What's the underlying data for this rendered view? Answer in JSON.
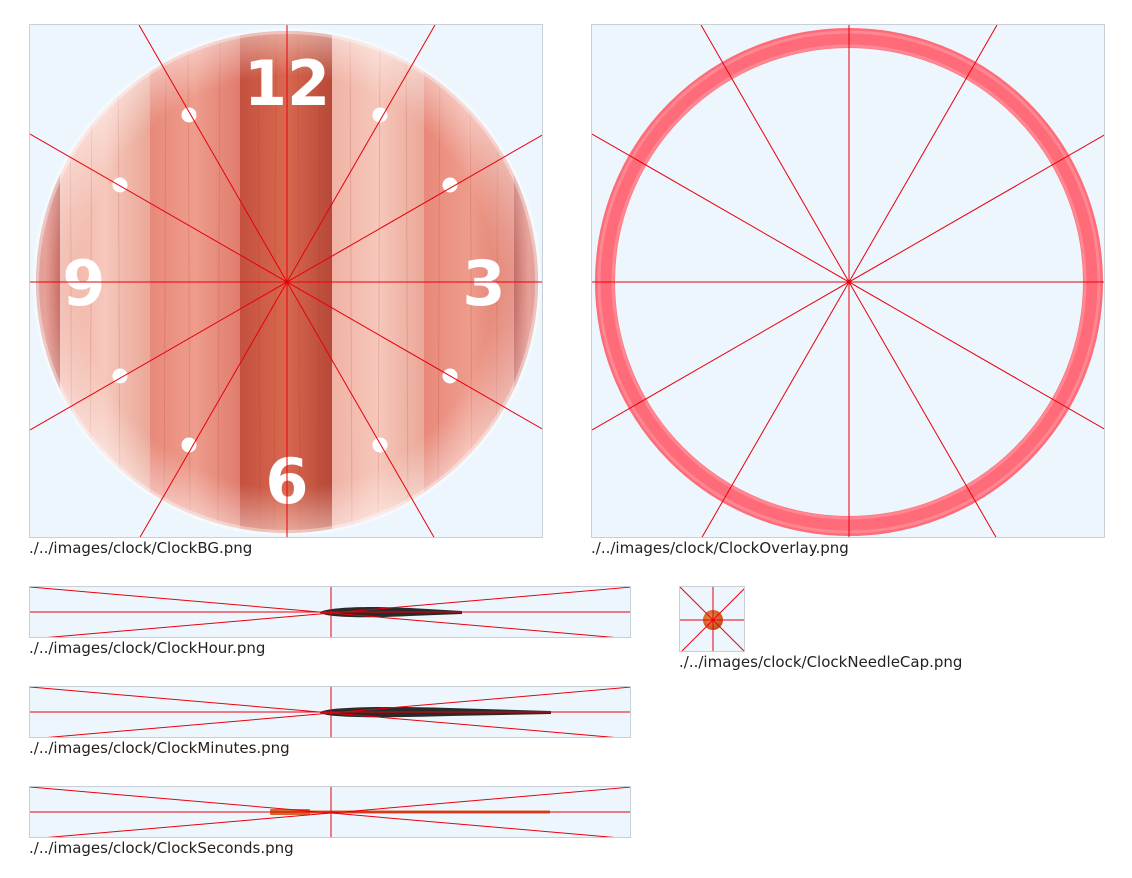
{
  "assets": {
    "clock_bg": {
      "caption": "./../images/clock/ClockBG.png",
      "numerals": {
        "twelve": "12",
        "three": "3",
        "six": "6",
        "nine": "9"
      }
    },
    "clock_overlay": {
      "caption": "./../images/clock/ClockOverlay.png"
    },
    "clock_hour": {
      "caption": "./../images/clock/ClockHour.png"
    },
    "clock_minutes": {
      "caption": "./../images/clock/ClockMinutes.png"
    },
    "clock_seconds": {
      "caption": "./../images/clock/ClockSeconds.png"
    },
    "clock_needle_cap": {
      "caption": "./../images/clock/ClockNeedleCap.png"
    }
  },
  "colors": {
    "tile_background": "#eef6fd",
    "guide_lines": "#e8000b",
    "wood_dark": "#c0504a",
    "wood_light": "#f4bcb0",
    "overlay_ring": "#ff6b78",
    "hand_dark": "#2a2a2a",
    "second_hand": "#d46a2a",
    "needle_cap": "#d9611a"
  }
}
